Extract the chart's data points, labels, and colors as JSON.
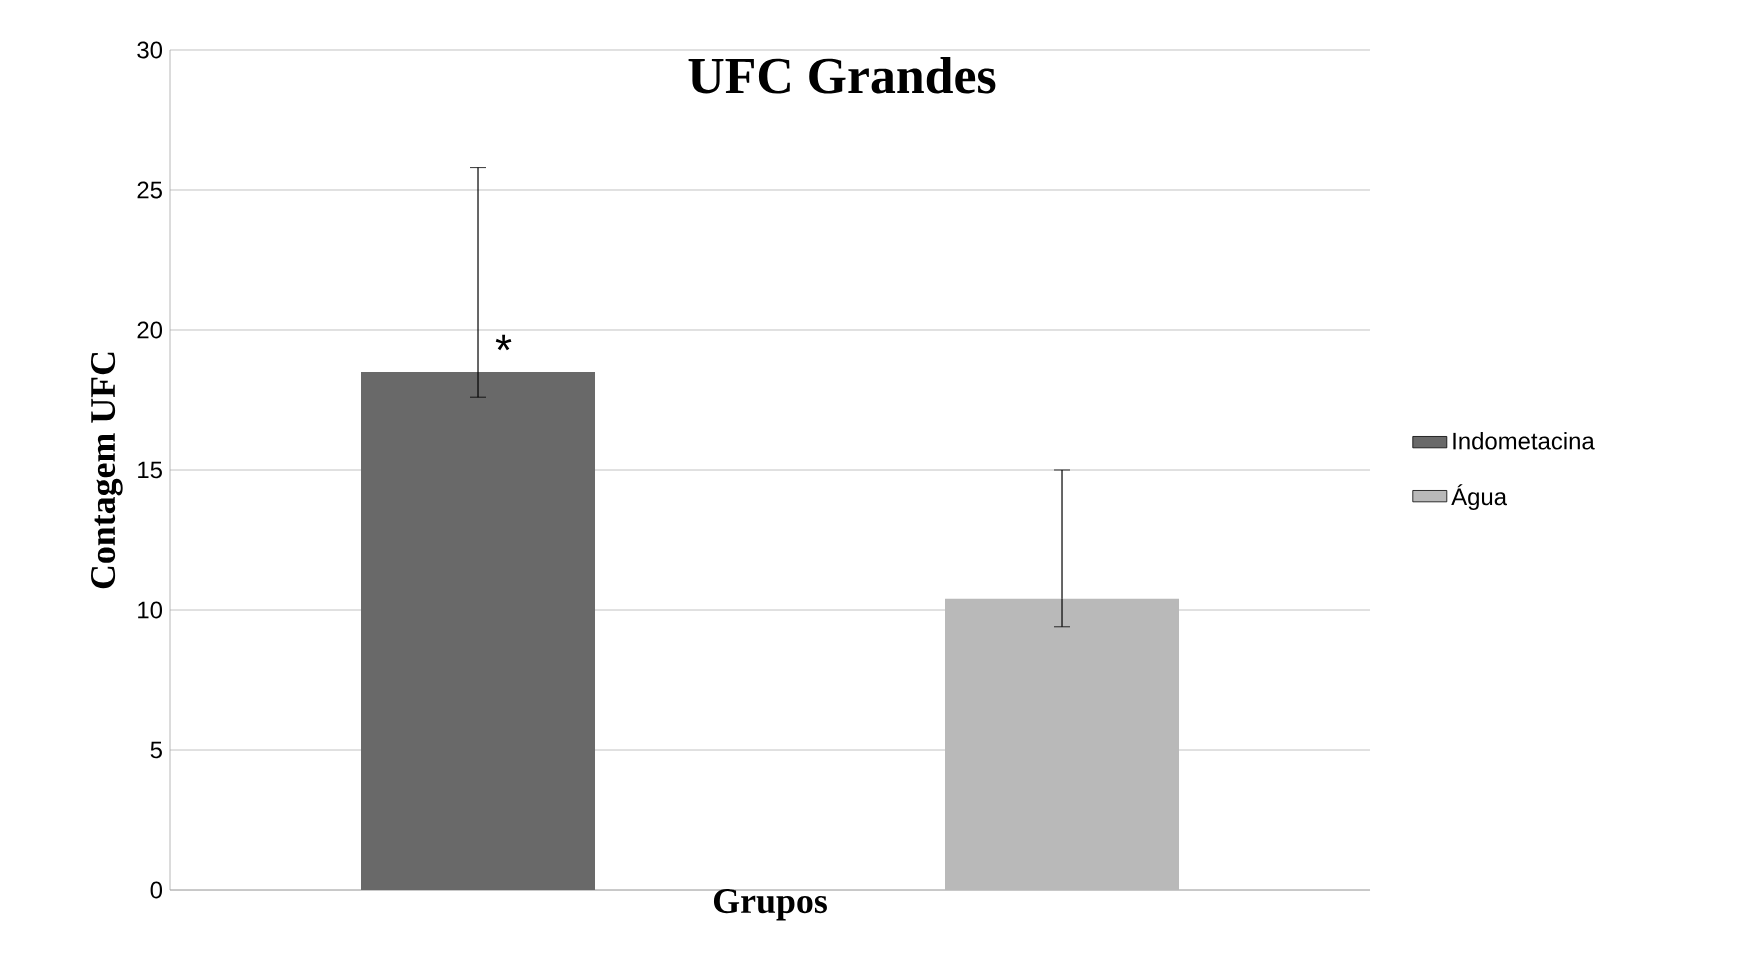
{
  "chart_data": {
    "type": "bar",
    "title": "UFC Grandes",
    "xlabel": "Grupos",
    "ylabel": "Contagem UFC",
    "categories": [
      null
    ],
    "series": [
      {
        "name": "Indometacina",
        "color": "#696969",
        "values": [
          18.5
        ],
        "errors": [
          [
            17.6,
            25.8
          ]
        ]
      },
      {
        "name": "Água",
        "color": "#b9b9b9",
        "values": [
          10.4
        ],
        "errors": [
          [
            9.4,
            15.0
          ]
        ]
      }
    ],
    "ylim": [
      0,
      30
    ],
    "yticks": [
      0,
      5,
      10,
      15,
      20,
      25,
      30
    ],
    "grid": "y",
    "legend": "right",
    "annotations": [
      "*"
    ]
  }
}
